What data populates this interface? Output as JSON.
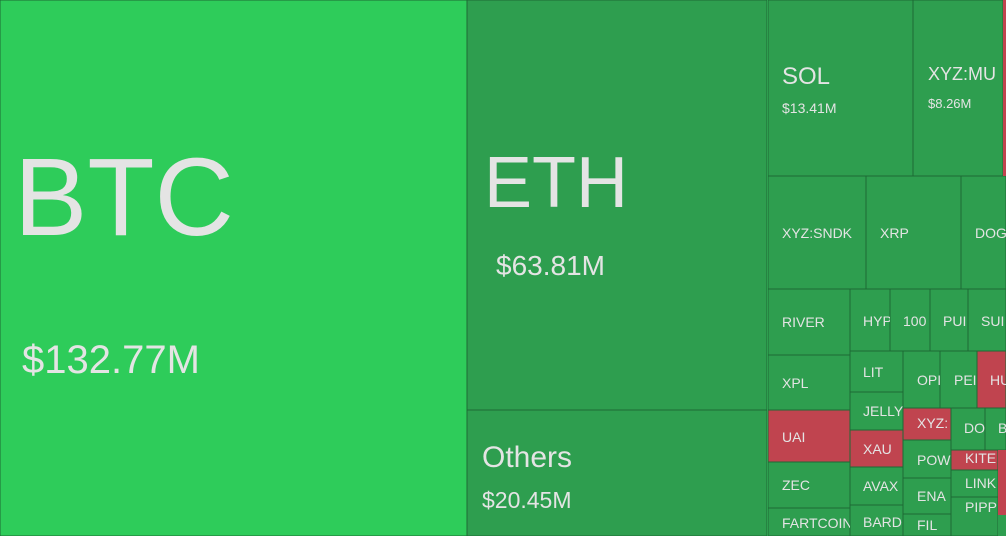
{
  "tiles": [
    {
      "label": "BTC",
      "value": "$132.77M"
    },
    {
      "label": "ETH",
      "value": "$63.81M"
    },
    {
      "label": "Others",
      "value": "$20.45M"
    },
    {
      "label": "SOL",
      "value": "$13.41M"
    },
    {
      "label": "XYZ:MU",
      "value": "$8.26M"
    },
    {
      "label": "XYZ:SNDK"
    },
    {
      "label": "XRP"
    },
    {
      "label": "DOG"
    },
    {
      "label": "RIVER"
    },
    {
      "label": "HYP"
    },
    {
      "label": "100"
    },
    {
      "label": "PUI"
    },
    {
      "label": "SUI"
    },
    {
      "label": "XPL"
    },
    {
      "label": "LIT"
    },
    {
      "label": "OPI"
    },
    {
      "label": "PEI"
    },
    {
      "label": "HU"
    },
    {
      "label": "JELLY"
    },
    {
      "label": "UAI"
    },
    {
      "label": "XAU"
    },
    {
      "label": "XYZ:"
    },
    {
      "label": "DO"
    },
    {
      "label": "B"
    },
    {
      "label": "POW"
    },
    {
      "label": "KITE"
    },
    {
      "label": "ZEC"
    },
    {
      "label": "AVAX"
    },
    {
      "label": "ENA"
    },
    {
      "label": "LINK"
    },
    {
      "label": "PIPP"
    },
    {
      "label": "FARTCOIN"
    },
    {
      "label": "BARD"
    },
    {
      "label": "FIL"
    }
  ]
}
